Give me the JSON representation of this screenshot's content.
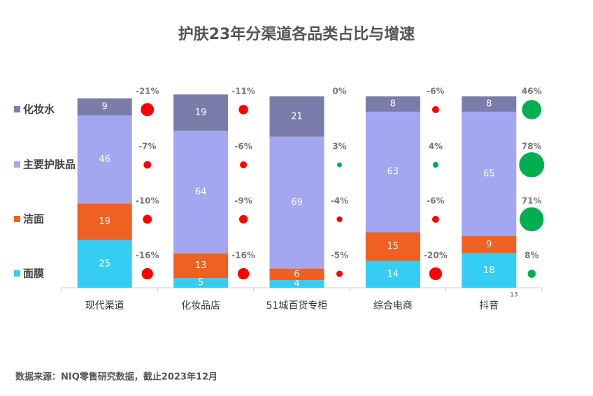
{
  "chart_data": {
    "type": "bar",
    "stacked": true,
    "title": "护肤23年分渠道各品类占比与增速",
    "categories": [
      "现代渠道",
      "化妆品店",
      "51城百货专柜",
      "综合电商",
      "抖音"
    ],
    "ylim": [
      0,
      100
    ],
    "series": [
      {
        "name": "面膜",
        "color": "#35cdf2",
        "values": [
          25,
          5,
          4,
          14,
          18
        ],
        "growth": [
          -16,
          -16,
          -5,
          -20,
          8
        ],
        "growth_labels": [
          "-16%",
          "-16%",
          "-5%",
          "-20%",
          "8%"
        ]
      },
      {
        "name": "洁面",
        "color": "#ef6122",
        "values": [
          19,
          13,
          6,
          15,
          9
        ],
        "growth": [
          -10,
          -9,
          -4,
          -6,
          71
        ],
        "growth_labels": [
          "-10%",
          "-9%",
          "-4%",
          "-6%",
          "71%"
        ]
      },
      {
        "name": "主要护肤品",
        "color": "#a3a6f1",
        "values": [
          46,
          64,
          69,
          63,
          65
        ],
        "growth": [
          -7,
          -6,
          3,
          4,
          78
        ],
        "growth_labels": [
          "-7%",
          "-6%",
          "3%",
          "4%",
          "78%"
        ]
      },
      {
        "name": "化妆水",
        "color": "#7a7da9",
        "values": [
          9,
          19,
          21,
          8,
          8
        ],
        "growth": [
          -21,
          -11,
          0,
          -6,
          46
        ],
        "growth_labels": [
          "-21%",
          "-11%",
          "0%",
          "-6%",
          "46%"
        ]
      }
    ],
    "growth_positive_color": "#00b050",
    "growth_negative_color": "#ff0000",
    "annotation": "13",
    "source": "数据来源：NIQ零售研究数据，截止2023年12月"
  }
}
